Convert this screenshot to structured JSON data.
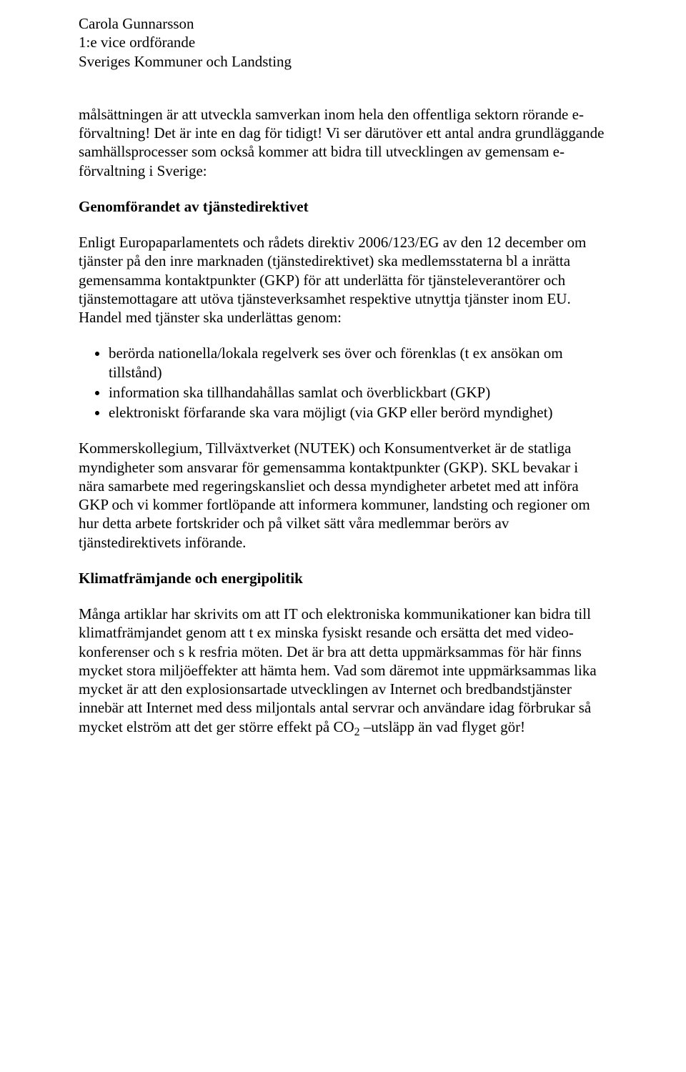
{
  "header": {
    "name": "Carola Gunnarsson",
    "role": "1:e vice ordförande",
    "org": "Sveriges Kommuner och Landsting"
  },
  "intro": "målsättningen är att utveckla samverkan inom hela den offentliga sektorn rörande e-förvaltning! Det är inte en dag för tidigt! Vi ser därutöver ett antal andra grundläggande samhällsprocesser som också kommer att bidra till utvecklingen av gemensam e-förvaltning i Sverige:",
  "section1": {
    "title": "Genomförandet av tjänstedirektivet",
    "para1": "Enligt Europaparlamentets och rådets direktiv 2006/123/EG av den 12 december om tjänster på den inre marknaden (tjänstedirektivet) ska medlemsstaterna bl a inrätta gemensamma kontaktpunkter (GKP) för att underlätta för tjänsteleverantörer och tjänstemottagare att utöva tjänsteverksamhet respektive utnyttja tjänster inom EU. Handel med tjänster ska underlättas genom:",
    "bullets": [
      "berörda nationella/lokala regelverk ses över och förenklas (t ex ansökan om tillstånd)",
      "information ska tillhandahållas samlat och överblickbart (GKP)",
      "elektroniskt förfarande ska vara möjligt (via GKP eller berörd myndighet)"
    ],
    "para2": "Kommerskollegium, Tillväxtverket (NUTEK) och Konsumentverket är de statliga myndigheter som ansvarar för gemensamma kontaktpunkter (GKP). SKL bevakar i nära samarbete med regeringskansliet och dessa myndigheter arbetet med att införa GKP och vi kommer fortlöpande att informera kommuner, landsting och regioner om hur detta arbete fortskrider och på vilket sätt våra medlemmar berörs av tjänstedirektivets införande."
  },
  "section2": {
    "title": "Klimatfrämjande och energipolitik",
    "para_pre": "Många artiklar har skrivits om att IT och elektroniska kommunikationer kan bidra till klimatfrämjandet genom att t ex minska fysiskt resande och ersätta det med video-konferenser och s k resfria möten. Det är bra att detta uppmärksammas för här finns mycket stora miljöeffekter att hämta hem. Vad som däremot inte uppmärksammas lika mycket är att den explosionsartade utvecklingen av Internet och bredbandstjänster innebär att Internet med dess miljontals antal servrar och användare idag förbrukar så mycket elström att det ger större effekt på CO",
    "sub": "2",
    "para_post": " –utsläpp än vad flyget gör!"
  }
}
